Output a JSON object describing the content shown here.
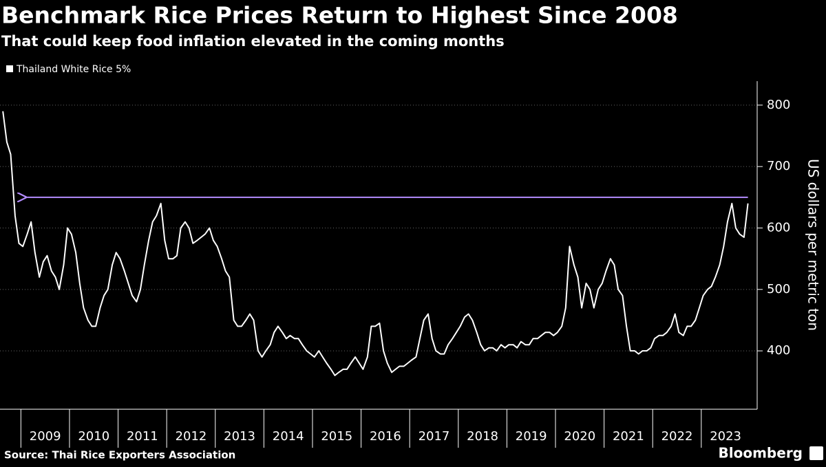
{
  "chart_data": {
    "type": "line",
    "title": "Benchmark Rice Prices Return to Highest Since 2008",
    "subtitle": "That could keep food inflation elevated in the coming months",
    "y_axis_label": "US dollars per metric ton",
    "source": "Source: Thai Rice Exporters Association",
    "brand": "Bloomberg",
    "grid": true,
    "xlim": [
      2008.57,
      2024.15
    ],
    "ylim": [
      305,
      839
    ],
    "yticks": [
      400,
      500,
      600,
      700,
      800
    ],
    "xticks": [
      {
        "value": 2009,
        "label": "2009"
      },
      {
        "value": 2010,
        "label": "2010"
      },
      {
        "value": 2011,
        "label": "2011"
      },
      {
        "value": 2012,
        "label": "2012"
      },
      {
        "value": 2013,
        "label": "2013"
      },
      {
        "value": 2014,
        "label": "2014"
      },
      {
        "value": 2015,
        "label": "2015"
      },
      {
        "value": 2016,
        "label": "2016"
      },
      {
        "value": 2017,
        "label": "2017"
      },
      {
        "value": 2018,
        "label": "2018"
      },
      {
        "value": 2019,
        "label": "2019"
      },
      {
        "value": 2020,
        "label": "2020"
      },
      {
        "value": 2021,
        "label": "2021"
      },
      {
        "value": 2022,
        "label": "2022"
      },
      {
        "value": 2023,
        "label": "2023"
      }
    ],
    "reference_line": {
      "value": 650,
      "color": "#b48cff"
    },
    "x": [
      2008.63,
      2008.71,
      2008.79,
      2008.88,
      2008.96,
      2009.04,
      2009.13,
      2009.21,
      2009.29,
      2009.38,
      2009.46,
      2009.54,
      2009.63,
      2009.71,
      2009.79,
      2009.88,
      2009.96,
      2010.04,
      2010.13,
      2010.21,
      2010.29,
      2010.38,
      2010.46,
      2010.54,
      2010.63,
      2010.71,
      2010.79,
      2010.88,
      2010.96,
      2011.04,
      2011.13,
      2011.21,
      2011.29,
      2011.38,
      2011.46,
      2011.54,
      2011.63,
      2011.71,
      2011.79,
      2011.88,
      2011.96,
      2012.04,
      2012.13,
      2012.21,
      2012.29,
      2012.38,
      2012.46,
      2012.54,
      2012.63,
      2012.71,
      2012.79,
      2012.88,
      2012.96,
      2013.04,
      2013.13,
      2013.21,
      2013.29,
      2013.38,
      2013.46,
      2013.54,
      2013.63,
      2013.71,
      2013.79,
      2013.88,
      2013.96,
      2014.04,
      2014.13,
      2014.21,
      2014.29,
      2014.38,
      2014.46,
      2014.54,
      2014.63,
      2014.71,
      2014.79,
      2014.88,
      2014.96,
      2015.04,
      2015.13,
      2015.21,
      2015.29,
      2015.38,
      2015.46,
      2015.54,
      2015.63,
      2015.71,
      2015.79,
      2015.88,
      2015.96,
      2016.04,
      2016.13,
      2016.21,
      2016.29,
      2016.38,
      2016.46,
      2016.54,
      2016.63,
      2016.71,
      2016.79,
      2016.88,
      2016.96,
      2017.04,
      2017.13,
      2017.21,
      2017.29,
      2017.38,
      2017.46,
      2017.54,
      2017.63,
      2017.71,
      2017.79,
      2017.88,
      2017.96,
      2018.04,
      2018.13,
      2018.21,
      2018.29,
      2018.38,
      2018.46,
      2018.54,
      2018.63,
      2018.71,
      2018.79,
      2018.88,
      2018.96,
      2019.04,
      2019.13,
      2019.21,
      2019.29,
      2019.38,
      2019.46,
      2019.54,
      2019.63,
      2019.71,
      2019.79,
      2019.88,
      2019.96,
      2020.04,
      2020.13,
      2020.21,
      2020.29,
      2020.38,
      2020.46,
      2020.54,
      2020.63,
      2020.71,
      2020.79,
      2020.88,
      2020.96,
      2021.04,
      2021.13,
      2021.21,
      2021.29,
      2021.38,
      2021.46,
      2021.54,
      2021.63,
      2021.71,
      2021.79,
      2021.88,
      2021.96,
      2022.04,
      2022.13,
      2022.21,
      2022.29,
      2022.38,
      2022.46,
      2022.54,
      2022.63,
      2022.71,
      2022.79,
      2022.88,
      2022.96,
      2023.04,
      2023.13,
      2023.21,
      2023.29,
      2023.38,
      2023.46,
      2023.54,
      2023.63,
      2023.71,
      2023.79,
      2023.88,
      2023.96
    ],
    "series": [
      {
        "name": "Thailand White Rice 5%",
        "color": "#ffffff",
        "values": [
          790,
          740,
          720,
          620,
          575,
          570,
          590,
          610,
          560,
          520,
          545,
          555,
          530,
          520,
          500,
          540,
          600,
          590,
          560,
          510,
          470,
          450,
          440,
          440,
          470,
          490,
          500,
          540,
          560,
          550,
          530,
          510,
          490,
          480,
          500,
          540,
          580,
          610,
          620,
          640,
          580,
          550,
          550,
          555,
          600,
          610,
          600,
          575,
          580,
          585,
          590,
          600,
          580,
          570,
          550,
          530,
          520,
          450,
          440,
          440,
          450,
          460,
          450,
          400,
          390,
          400,
          410,
          430,
          440,
          430,
          420,
          425,
          420,
          420,
          410,
          400,
          395,
          390,
          400,
          390,
          380,
          370,
          360,
          365,
          370,
          370,
          380,
          390,
          380,
          370,
          390,
          440,
          440,
          445,
          400,
          380,
          365,
          370,
          375,
          375,
          380,
          385,
          390,
          420,
          450,
          460,
          420,
          400,
          395,
          395,
          410,
          420,
          430,
          440,
          455,
          460,
          450,
          430,
          410,
          400,
          405,
          405,
          400,
          410,
          405,
          410,
          410,
          405,
          415,
          410,
          410,
          420,
          420,
          425,
          430,
          430,
          425,
          430,
          440,
          470,
          570,
          540,
          520,
          470,
          510,
          500,
          470,
          500,
          510,
          530,
          550,
          540,
          500,
          490,
          440,
          400,
          400,
          395,
          400,
          400,
          405,
          420,
          425,
          425,
          430,
          440,
          460,
          430,
          425,
          440,
          440,
          450,
          470,
          490,
          500,
          505,
          520,
          540,
          570,
          610,
          640,
          600,
          590,
          585,
          640
        ]
      }
    ]
  }
}
